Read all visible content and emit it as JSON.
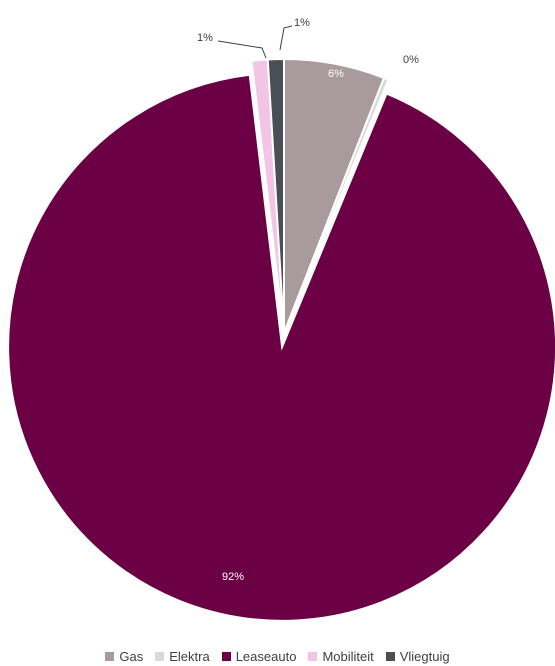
{
  "chart_data": {
    "type": "pie",
    "categories": [
      "Gas",
      "Elektra",
      "Leaseauto",
      "Mobiliteit",
      "Vliegtuig"
    ],
    "values": [
      6,
      0,
      92,
      1,
      1
    ],
    "data_labels": [
      "6%",
      "0%",
      "92%",
      "1%",
      "1%"
    ],
    "colors": [
      "#a99a9d",
      "#d9d9d9",
      "#6b0044",
      "#f2c4e6",
      "#4a4f55"
    ],
    "legend_position": "bottom",
    "title": ""
  }
}
